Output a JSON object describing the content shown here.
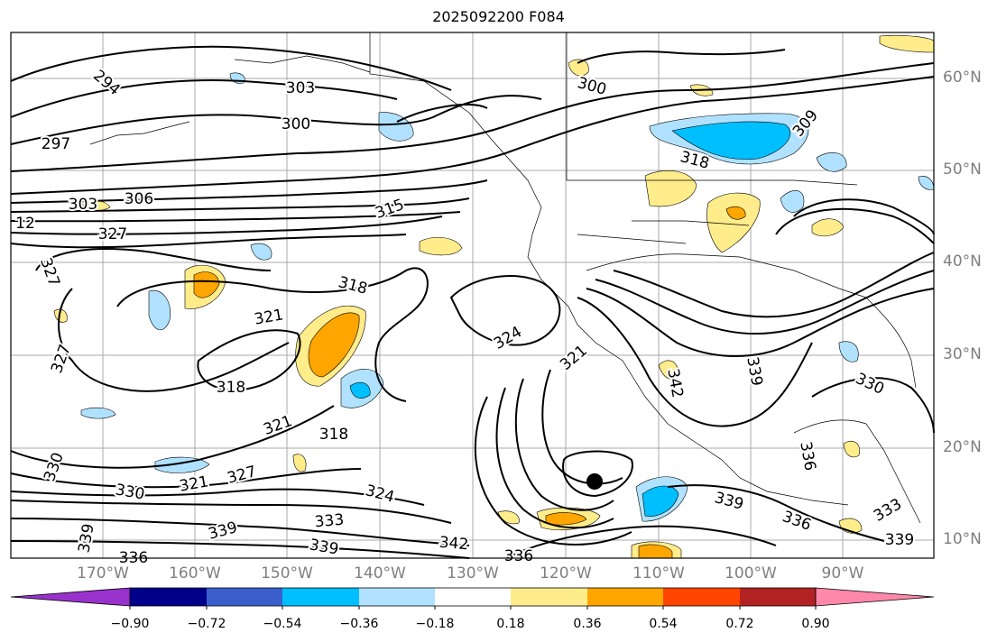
{
  "title": "2025092200 F084",
  "lat_labels": [
    "60°N",
    "50°N",
    "40°N",
    "30°N",
    "20°N",
    "10°N"
  ],
  "lon_labels": [
    "170°W",
    "160°W",
    "150°W",
    "140°W",
    "130°W",
    "120°W",
    "110°W",
    "100°W",
    "90°W"
  ],
  "colorbar": {
    "colors": [
      "#9932cc",
      "#00008b",
      "#3a5fcd",
      "#00bfff",
      "#b0e2ff",
      "#ffffff",
      "#ffec8b",
      "#ffa500",
      "#ff4500",
      "#b22222",
      "#ff88aa"
    ],
    "labels": [
      "−0.90",
      "−0.72",
      "−0.54",
      "−0.36",
      "−0.18",
      "0.18",
      "0.36",
      "0.54",
      "0.72",
      "0.90"
    ]
  },
  "contour_labels": [
    {
      "text": "294"
    },
    {
      "text": "303"
    },
    {
      "text": "300"
    },
    {
      "text": "297"
    },
    {
      "text": "303"
    },
    {
      "text": "306"
    },
    {
      "text": "12"
    },
    {
      "text": "327"
    },
    {
      "text": "327"
    },
    {
      "text": "315"
    },
    {
      "text": "318"
    },
    {
      "text": "321"
    },
    {
      "text": "327"
    },
    {
      "text": "318"
    },
    {
      "text": "321"
    },
    {
      "text": "318"
    },
    {
      "text": "324"
    },
    {
      "text": "321"
    },
    {
      "text": "342"
    },
    {
      "text": "339"
    },
    {
      "text": "330"
    },
    {
      "text": "336"
    },
    {
      "text": "339"
    },
    {
      "text": "336"
    },
    {
      "text": "333"
    },
    {
      "text": "339"
    },
    {
      "text": "300"
    },
    {
      "text": "309"
    },
    {
      "text": "318"
    },
    {
      "text": "330"
    },
    {
      "text": "330"
    },
    {
      "text": "321"
    },
    {
      "text": "327"
    },
    {
      "text": "324"
    },
    {
      "text": "333"
    },
    {
      "text": "339"
    },
    {
      "text": "339"
    },
    {
      "text": "342"
    },
    {
      "text": "336"
    },
    {
      "text": "339"
    },
    {
      "text": "336"
    }
  ],
  "map_colors": {
    "blue_light": "#b0e2ff",
    "blue": "#00bfff",
    "yellow": "#ffec8b",
    "orange": "#ffa500",
    "red": "#ff4500"
  },
  "storm_marker": "hurricane-center-icon"
}
